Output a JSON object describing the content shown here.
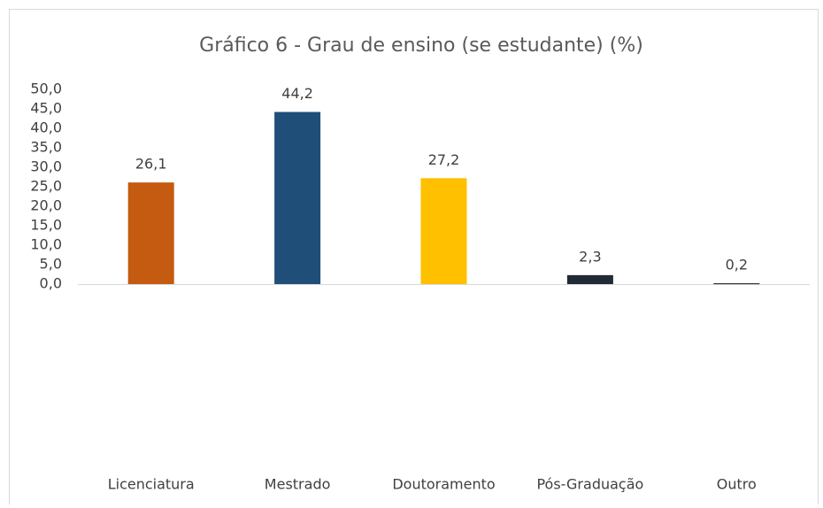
{
  "chart_data": {
    "type": "bar",
    "title": "Gráfico 6 - Grau de ensino (se estudante) (%)",
    "categories": [
      "Licenciatura",
      "Mestrado",
      "Doutoramento",
      "Pós-Graduação",
      "Outro"
    ],
    "values": [
      26.1,
      44.2,
      27.2,
      2.3,
      0.2
    ],
    "value_labels": [
      "26,1",
      "44,2",
      "27,2",
      "2,3",
      "0,2"
    ],
    "colors": [
      "#c55a11",
      "#1f4e79",
      "#ffc000",
      "#222a35",
      "#1a1a1a"
    ],
    "ylim": [
      0,
      50
    ],
    "yticks": [
      {
        "value": 0,
        "label": "0,0"
      },
      {
        "value": 5,
        "label": "5,0"
      },
      {
        "value": 10,
        "label": "10,0"
      },
      {
        "value": 15,
        "label": "15,0"
      },
      {
        "value": 20,
        "label": "20,0"
      },
      {
        "value": 25,
        "label": "25,0"
      },
      {
        "value": 30,
        "label": "30,0"
      },
      {
        "value": 35,
        "label": "35,0"
      },
      {
        "value": 40,
        "label": "40,0"
      },
      {
        "value": 45,
        "label": "45,0"
      },
      {
        "value": 50,
        "label": "50,0"
      }
    ],
    "grid": false
  }
}
